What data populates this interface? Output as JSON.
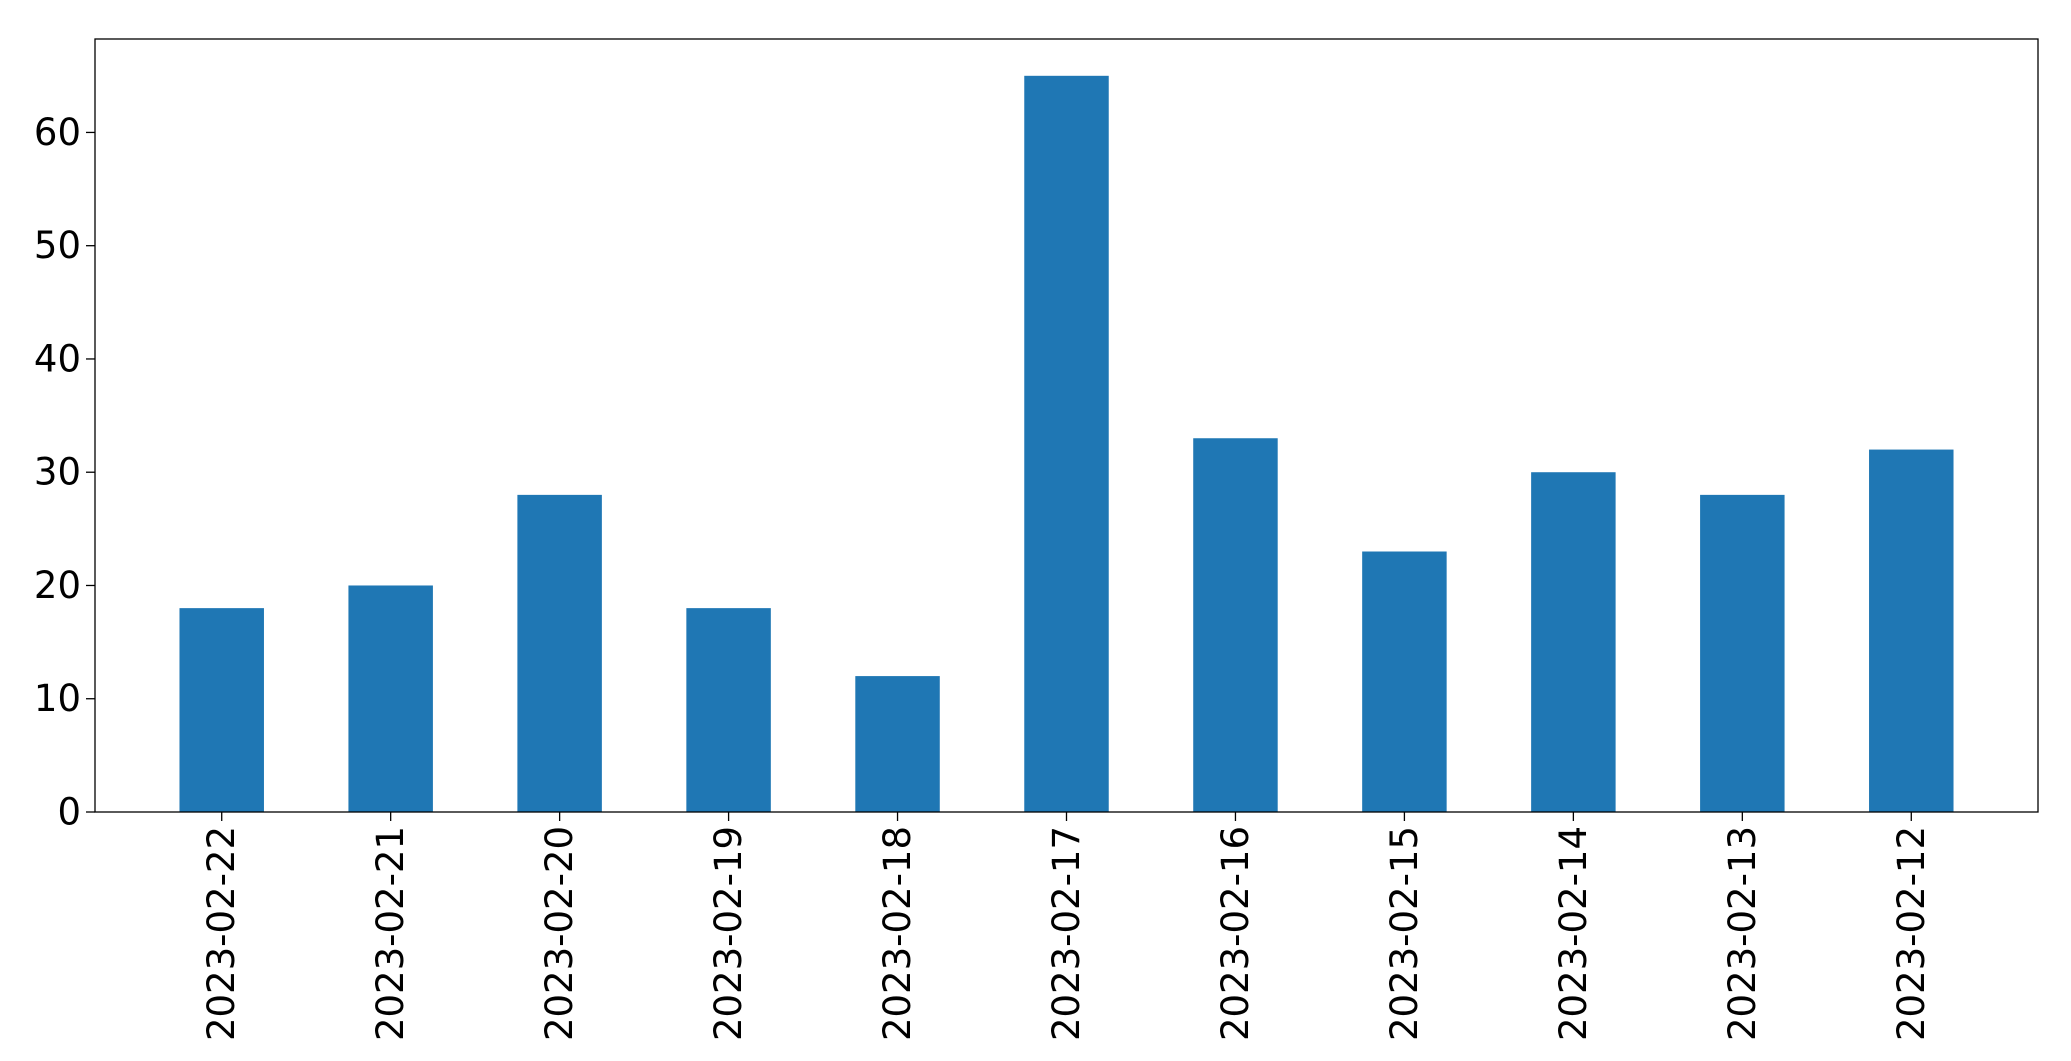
{
  "chart_data": {
    "type": "bar",
    "title": "",
    "xlabel": "",
    "ylabel": "",
    "categories": [
      "2023-02-22",
      "2023-02-21",
      "2023-02-20",
      "2023-02-19",
      "2023-02-18",
      "2023-02-17",
      "2023-02-16",
      "2023-02-15",
      "2023-02-14",
      "2023-02-13",
      "2023-02-12"
    ],
    "values": [
      18,
      20,
      28,
      18,
      12,
      65,
      33,
      23,
      30,
      28,
      32
    ],
    "ylim": [
      0,
      68.25
    ],
    "yticks": [
      0,
      10,
      20,
      30,
      40,
      50,
      60
    ],
    "ytick_labels": [
      "0",
      "10",
      "20",
      "30",
      "40",
      "50",
      "60"
    ],
    "bar_color": "#1f77b4",
    "grid": false,
    "legend": "none"
  }
}
